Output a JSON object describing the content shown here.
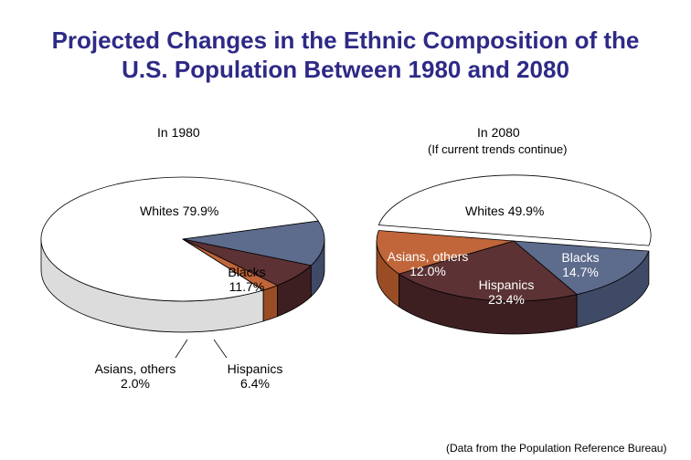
{
  "title": {
    "line1": "Projected Changes in the Ethnic Composition of the",
    "line2": "U.S. Population Between 1980 and 2080"
  },
  "source": "(Data from the Population Reference Bureau)",
  "chart_data": [
    {
      "type": "pie",
      "title": "In 1980",
      "subtitle": "",
      "slices": [
        {
          "name": "Whites",
          "value": 79.9,
          "label": "79.9%",
          "color": "#ffffff"
        },
        {
          "name": "Blacks",
          "value": 11.7,
          "label": "11.7%",
          "color": "#5d6b8c"
        },
        {
          "name": "Hispanics",
          "value": 6.4,
          "label": "6.4%",
          "color": "#5c3234"
        },
        {
          "name": "Asians, others",
          "value": 2.0,
          "label": "2.0%",
          "color": "#c0663a"
        }
      ]
    },
    {
      "type": "pie",
      "title": "In 2080",
      "subtitle": "(If current trends continue)",
      "slices": [
        {
          "name": "Whites",
          "value": 49.9,
          "label": "49.9%",
          "color": "#ffffff"
        },
        {
          "name": "Blacks",
          "value": 14.7,
          "label": "14.7%",
          "color": "#5d6b8c"
        },
        {
          "name": "Hispanics",
          "value": 23.4,
          "label": "23.4%",
          "color": "#5c3234"
        },
        {
          "name": "Asians, others",
          "value": 12.0,
          "label": "12.0%",
          "color": "#c0663a"
        }
      ]
    }
  ]
}
